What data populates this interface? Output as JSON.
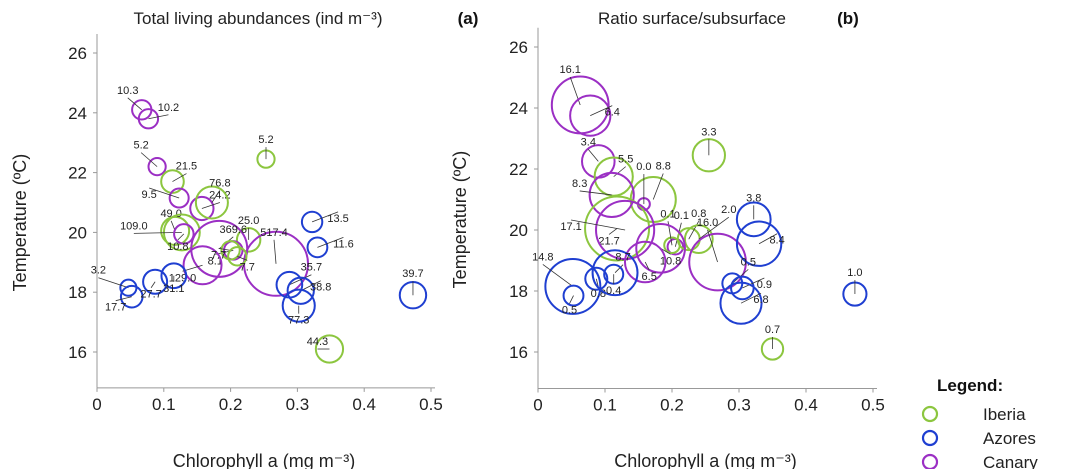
{
  "colors": {
    "Iberia": "#8cc63f",
    "Azores": "#1f3fd1",
    "Canary": "#9b2fc4"
  },
  "legend": {
    "title": "Legend:",
    "items": [
      {
        "name": "Iberia",
        "color": "#8cc63f"
      },
      {
        "name": "Azores",
        "color": "#1f3fd1"
      },
      {
        "name": "Canary",
        "color": "#9b2fc4"
      }
    ]
  },
  "chart_data": [
    {
      "type": "scatter",
      "panel": "(a)",
      "title": "Total living abundances (ind m⁻³)",
      "xlabel": "Chlorophyll a (mg m⁻³)",
      "ylabel": "Temperature (ºC)",
      "xlim": [
        0,
        0.5
      ],
      "ylim": [
        15,
        26.5
      ],
      "xticks": [
        "0",
        "0.1",
        "0.2",
        "0.3",
        "0.4",
        "0.5"
      ],
      "yticks": [
        "16",
        "18",
        "20",
        "22",
        "24",
        "26"
      ],
      "points": [
        {
          "region": "Canary",
          "x": 0.067,
          "y": 24.1,
          "label": "10.3",
          "size": 10.3
        },
        {
          "region": "Canary",
          "x": 0.077,
          "y": 23.8,
          "label": "10.2",
          "size": 10.2
        },
        {
          "region": "Canary",
          "x": 0.09,
          "y": 22.2,
          "label": "5.2",
          "size": 5.2
        },
        {
          "region": "Iberia",
          "x": 0.253,
          "y": 22.45,
          "label": "5.2",
          "size": 5.2
        },
        {
          "region": "Iberia",
          "x": 0.113,
          "y": 21.7,
          "label": "21.5",
          "size": 21.5
        },
        {
          "region": "Canary",
          "x": 0.123,
          "y": 21.15,
          "label": "9.5",
          "size": 9.5
        },
        {
          "region": "Canary",
          "x": 0.157,
          "y": 20.8,
          "label": "24.2",
          "size": 24.2
        },
        {
          "region": "Iberia",
          "x": 0.172,
          "y": 21.0,
          "label": "76.8",
          "size": 76.8
        },
        {
          "region": "Iberia",
          "x": 0.117,
          "y": 20.05,
          "label": "49.0",
          "size": 49.0
        },
        {
          "region": "Iberia",
          "x": 0.127,
          "y": 20.0,
          "label": "109.0",
          "size": 109.0
        },
        {
          "region": "Canary",
          "x": 0.13,
          "y": 19.95,
          "label": "10.8",
          "size": 10.8
        },
        {
          "region": "Iberia",
          "x": 0.227,
          "y": 19.75,
          "label": "25.0",
          "size": 25.0
        },
        {
          "region": "Canary",
          "x": 0.183,
          "y": 19.45,
          "label": "369.6",
          "size": 369.6
        },
        {
          "region": "Canary",
          "x": 0.204,
          "y": 19.4,
          "label": "8.1",
          "size": 8.1
        },
        {
          "region": "Canary",
          "x": 0.158,
          "y": 18.9,
          "label": "129.0",
          "size": 129.0
        },
        {
          "region": "Canary",
          "x": 0.268,
          "y": 18.95,
          "label": "517.4",
          "size": 517.4
        },
        {
          "region": "Iberia",
          "x": 0.2,
          "y": 19.4,
          "label": "7.7",
          "size": 7.7
        },
        {
          "region": "Iberia",
          "x": 0.21,
          "y": 19.2,
          "label": "7.7",
          "size": 7.7
        },
        {
          "region": "Azores",
          "x": 0.322,
          "y": 20.35,
          "label": "13.5",
          "size": 13.5
        },
        {
          "region": "Azores",
          "x": 0.33,
          "y": 19.5,
          "label": "11.6",
          "size": 11.6
        },
        {
          "region": "Azores",
          "x": 0.047,
          "y": 18.15,
          "label": "3.2",
          "size": 3.2
        },
        {
          "region": "Azores",
          "x": 0.052,
          "y": 17.85,
          "label": "17.7",
          "size": 17.7
        },
        {
          "region": "Azores",
          "x": 0.087,
          "y": 18.35,
          "label": "27.7",
          "size": 27.7
        },
        {
          "region": "Azores",
          "x": 0.115,
          "y": 18.55,
          "label": "31.1",
          "size": 31.1
        },
        {
          "region": "Azores",
          "x": 0.288,
          "y": 18.25,
          "label": "35.7",
          "size": 35.7
        },
        {
          "region": "Azores",
          "x": 0.305,
          "y": 18.05,
          "label": "38.8",
          "size": 38.8
        },
        {
          "region": "Azores",
          "x": 0.302,
          "y": 17.55,
          "label": "77.3",
          "size": 77.3
        },
        {
          "region": "Azores",
          "x": 0.473,
          "y": 17.9,
          "label": "39.7",
          "size": 39.7
        },
        {
          "region": "Iberia",
          "x": 0.348,
          "y": 16.1,
          "label": "44.3",
          "size": 44.3
        }
      ]
    },
    {
      "type": "scatter",
      "panel": "(b)",
      "title": "Ratio surface/subsurface",
      "xlabel": "Chlorophyll a (mg m⁻³)",
      "ylabel": "Temperature (ºC)",
      "xlim": [
        0,
        0.5
      ],
      "ylim": [
        15,
        26.5
      ],
      "xticks": [
        "0",
        "0.1",
        "0.2",
        "0.3",
        "0.4",
        "0.5"
      ],
      "yticks": [
        "16",
        "18",
        "20",
        "22",
        "24",
        "26"
      ],
      "points": [
        {
          "region": "Canary",
          "x": 0.063,
          "y": 24.1,
          "label": "16.1",
          "size": 16.1
        },
        {
          "region": "Canary",
          "x": 0.078,
          "y": 23.75,
          "label": "6.4",
          "size": 6.4
        },
        {
          "region": "Iberia",
          "x": 0.255,
          "y": 22.45,
          "label": "3.3",
          "size": 3.3
        },
        {
          "region": "Canary",
          "x": 0.09,
          "y": 22.25,
          "label": "3.4",
          "size": 3.4
        },
        {
          "region": "Iberia",
          "x": 0.113,
          "y": 21.75,
          "label": "5.5",
          "size": 5.5
        },
        {
          "region": "Iberia",
          "x": 0.172,
          "y": 21.0,
          "label": "8.8",
          "size": 8.8
        },
        {
          "region": "Canary",
          "x": 0.158,
          "y": 20.85,
          "label": "0.0",
          "size": 0.0
        },
        {
          "region": "Canary",
          "x": 0.11,
          "y": 21.15,
          "label": "8.3",
          "size": 8.3
        },
        {
          "region": "Iberia",
          "x": 0.118,
          "y": 20.05,
          "label": "21.7",
          "size": 21.7
        },
        {
          "region": "Canary",
          "x": 0.13,
          "y": 20.0,
          "label": "17.1",
          "size": 17.1
        },
        {
          "region": "Canary",
          "x": 0.205,
          "y": 19.45,
          "label": "0.1",
          "size": 0.1
        },
        {
          "region": "Iberia",
          "x": 0.2,
          "y": 19.5,
          "label": "0.1",
          "size": 0.1
        },
        {
          "region": "Iberia",
          "x": 0.225,
          "y": 19.7,
          "label": "0.8",
          "size": 0.8
        },
        {
          "region": "Iberia",
          "x": 0.24,
          "y": 19.7,
          "label": "2.0",
          "size": 2.0
        },
        {
          "region": "Canary",
          "x": 0.183,
          "y": 19.4,
          "label": "10.8",
          "size": 10.8
        },
        {
          "region": "Canary",
          "x": 0.16,
          "y": 18.95,
          "label": "6.5",
          "size": 6.5
        },
        {
          "region": "Canary",
          "x": 0.268,
          "y": 18.95,
          "label": "16.0",
          "size": 16.0
        },
        {
          "region": "Azores",
          "x": 0.322,
          "y": 20.35,
          "label": "3.8",
          "size": 3.8
        },
        {
          "region": "Azores",
          "x": 0.33,
          "y": 19.55,
          "label": "8.4",
          "size": 8.4
        },
        {
          "region": "Azores",
          "x": 0.052,
          "y": 18.15,
          "label": "14.8",
          "size": 14.8
        },
        {
          "region": "Azores",
          "x": 0.053,
          "y": 17.85,
          "label": "0.5",
          "size": 0.5
        },
        {
          "region": "Azores",
          "x": 0.087,
          "y": 18.4,
          "label": "0.8",
          "size": 0.8
        },
        {
          "region": "Azores",
          "x": 0.115,
          "y": 18.6,
          "label": "8.7",
          "size": 8.7
        },
        {
          "region": "Azores",
          "x": 0.113,
          "y": 18.55,
          "label": "0.4",
          "size": 0.4
        },
        {
          "region": "Azores",
          "x": 0.29,
          "y": 18.25,
          "label": "0.5",
          "size": 0.5
        },
        {
          "region": "Azores",
          "x": 0.305,
          "y": 18.1,
          "label": "0.9",
          "size": 0.9
        },
        {
          "region": "Azores",
          "x": 0.303,
          "y": 17.6,
          "label": "6.8",
          "size": 6.8
        },
        {
          "region": "Azores",
          "x": 0.473,
          "y": 17.9,
          "label": "1.0",
          "size": 1.0
        },
        {
          "region": "Iberia",
          "x": 0.35,
          "y": 16.1,
          "label": "0.7",
          "size": 0.7
        }
      ]
    }
  ]
}
